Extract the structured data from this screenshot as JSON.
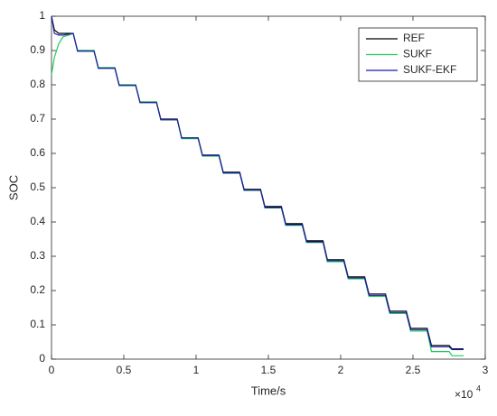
{
  "chart_data": {
    "type": "line",
    "xlabel": "Time/s",
    "ylabel": "SOC",
    "x_scale_base": "×10",
    "x_scale_power": "4",
    "xlim": [
      0,
      3
    ],
    "xticks": [
      0,
      0.5,
      1,
      1.5,
      2,
      2.5,
      3
    ],
    "ylim": [
      0,
      1
    ],
    "yticks": [
      0,
      0.1,
      0.2,
      0.3,
      0.4,
      0.5,
      0.6,
      0.7,
      0.8,
      0.9,
      1
    ],
    "grid": false,
    "legend": "northeast",
    "x": [
      0,
      0.02,
      0.05,
      0.08,
      0.12,
      0.15,
      0.18,
      0.294,
      0.324,
      0.438,
      0.468,
      0.582,
      0.612,
      0.726,
      0.756,
      0.87,
      0.9,
      1.014,
      1.044,
      1.158,
      1.188,
      1.302,
      1.332,
      1.446,
      1.476,
      1.59,
      1.62,
      1.734,
      1.764,
      1.878,
      1.908,
      2.022,
      2.052,
      2.166,
      2.196,
      2.31,
      2.34,
      2.454,
      2.484,
      2.598,
      2.628,
      2.75,
      2.77,
      2.85
    ],
    "series": [
      {
        "name": "REF",
        "color": "#000000",
        "values": [
          1,
          0.96,
          0.95,
          0.95,
          0.95,
          0.95,
          0.9,
          0.9,
          0.85,
          0.85,
          0.8,
          0.8,
          0.75,
          0.75,
          0.7,
          0.7,
          0.645,
          0.645,
          0.595,
          0.595,
          0.545,
          0.545,
          0.495,
          0.495,
          0.445,
          0.445,
          0.395,
          0.395,
          0.345,
          0.345,
          0.29,
          0.29,
          0.24,
          0.24,
          0.19,
          0.19,
          0.14,
          0.14,
          0.09,
          0.09,
          0.04,
          0.04,
          0.03,
          0.03
        ]
      },
      {
        "name": "SUKF",
        "color": "#1fcc5a",
        "values": [
          0.83,
          0.88,
          0.92,
          0.94,
          0.945,
          0.95,
          0.9,
          0.9,
          0.85,
          0.85,
          0.8,
          0.8,
          0.75,
          0.75,
          0.698,
          0.698,
          0.643,
          0.643,
          0.592,
          0.592,
          0.542,
          0.542,
          0.492,
          0.492,
          0.441,
          0.441,
          0.39,
          0.39,
          0.34,
          0.34,
          0.284,
          0.284,
          0.234,
          0.234,
          0.183,
          0.183,
          0.133,
          0.133,
          0.082,
          0.082,
          0.022,
          0.022,
          0.01,
          0.01
        ]
      },
      {
        "name": "SUKF-EKF",
        "color": "#1c1ca8",
        "values": [
          1,
          0.95,
          0.945,
          0.945,
          0.948,
          0.95,
          0.898,
          0.898,
          0.848,
          0.848,
          0.798,
          0.798,
          0.748,
          0.748,
          0.698,
          0.698,
          0.645,
          0.645,
          0.594,
          0.594,
          0.543,
          0.543,
          0.493,
          0.493,
          0.442,
          0.442,
          0.392,
          0.392,
          0.342,
          0.342,
          0.287,
          0.287,
          0.237,
          0.237,
          0.186,
          0.186,
          0.136,
          0.136,
          0.086,
          0.086,
          0.036,
          0.036,
          0.028,
          0.028
        ]
      }
    ]
  }
}
